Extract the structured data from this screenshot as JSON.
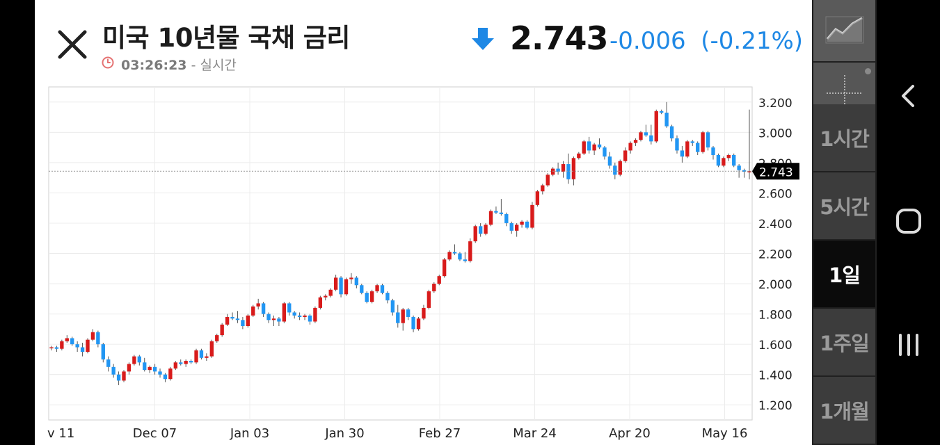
{
  "header": {
    "title": "미국 10년물 국채 금리",
    "time": "03:26:23",
    "time_suffix": " - 실시간",
    "price": "2.743",
    "change": "-0.006",
    "change_pct": "(-0.21%)",
    "change_color": "#1e88e5"
  },
  "icons": {
    "close": "close-icon",
    "clock": "clock-icon",
    "direction": "arrow-down-icon",
    "chart_type": "line-chart-icon",
    "crosshair": "crosshair-icon"
  },
  "rail": {
    "timeframes": [
      "1시간",
      "5시간",
      "1일",
      "1주일",
      "1개월"
    ],
    "active": "1일"
  },
  "chart_data": {
    "type": "candlestick",
    "x_tick_labels": [
      "v 11",
      "Dec 07",
      "Jan 03",
      "Jan 30",
      "Feb 27",
      "Mar 24",
      "Apr 20",
      "May 16"
    ],
    "y_tick_labels": [
      "3.200",
      "3.000",
      "2.800",
      "2.600",
      "2.400",
      "2.200",
      "2.000",
      "1.800",
      "1.600",
      "1.400",
      "1.200"
    ],
    "ylim": [
      1.1,
      3.3
    ],
    "current_value": 2.743,
    "current_label": "2.743",
    "up_color": "#d81b1b",
    "down_color": "#2196f3",
    "series": [
      [
        1.58,
        1.59,
        1.56,
        1.58
      ],
      [
        1.58,
        1.59,
        1.55,
        1.57
      ],
      [
        1.57,
        1.63,
        1.56,
        1.62
      ],
      [
        1.62,
        1.66,
        1.61,
        1.64
      ],
      [
        1.64,
        1.65,
        1.59,
        1.6
      ],
      [
        1.6,
        1.62,
        1.55,
        1.58
      ],
      [
        1.58,
        1.61,
        1.52,
        1.55
      ],
      [
        1.55,
        1.64,
        1.54,
        1.63
      ],
      [
        1.63,
        1.7,
        1.62,
        1.68
      ],
      [
        1.68,
        1.69,
        1.58,
        1.6
      ],
      [
        1.6,
        1.61,
        1.48,
        1.5
      ],
      [
        1.5,
        1.52,
        1.42,
        1.45
      ],
      [
        1.45,
        1.47,
        1.38,
        1.4
      ],
      [
        1.4,
        1.42,
        1.33,
        1.36
      ],
      [
        1.36,
        1.43,
        1.35,
        1.42
      ],
      [
        1.42,
        1.48,
        1.4,
        1.47
      ],
      [
        1.47,
        1.53,
        1.46,
        1.52
      ],
      [
        1.52,
        1.53,
        1.46,
        1.48
      ],
      [
        1.48,
        1.51,
        1.42,
        1.43
      ],
      [
        1.43,
        1.46,
        1.41,
        1.45
      ],
      [
        1.45,
        1.47,
        1.4,
        1.42
      ],
      [
        1.42,
        1.44,
        1.38,
        1.4
      ],
      [
        1.4,
        1.41,
        1.35,
        1.37
      ],
      [
        1.37,
        1.45,
        1.36,
        1.44
      ],
      [
        1.44,
        1.49,
        1.43,
        1.48
      ],
      [
        1.48,
        1.5,
        1.46,
        1.47
      ],
      [
        1.47,
        1.5,
        1.45,
        1.49
      ],
      [
        1.49,
        1.5,
        1.47,
        1.48
      ],
      [
        1.48,
        1.57,
        1.47,
        1.56
      ],
      [
        1.56,
        1.57,
        1.5,
        1.51
      ],
      [
        1.51,
        1.54,
        1.49,
        1.52
      ],
      [
        1.52,
        1.63,
        1.51,
        1.62
      ],
      [
        1.62,
        1.67,
        1.61,
        1.66
      ],
      [
        1.66,
        1.74,
        1.65,
        1.73
      ],
      [
        1.73,
        1.8,
        1.72,
        1.78
      ],
      [
        1.78,
        1.81,
        1.76,
        1.77
      ],
      [
        1.77,
        1.82,
        1.74,
        1.76
      ],
      [
        1.76,
        1.78,
        1.7,
        1.72
      ],
      [
        1.72,
        1.8,
        1.71,
        1.79
      ],
      [
        1.79,
        1.86,
        1.78,
        1.85
      ],
      [
        1.85,
        1.9,
        1.83,
        1.87
      ],
      [
        1.87,
        1.88,
        1.78,
        1.8
      ],
      [
        1.8,
        1.81,
        1.74,
        1.76
      ],
      [
        1.76,
        1.79,
        1.72,
        1.77
      ],
      [
        1.77,
        1.78,
        1.72,
        1.75
      ],
      [
        1.75,
        1.88,
        1.74,
        1.87
      ],
      [
        1.87,
        1.88,
        1.79,
        1.81
      ],
      [
        1.81,
        1.82,
        1.77,
        1.79
      ],
      [
        1.79,
        1.81,
        1.76,
        1.78
      ],
      [
        1.78,
        1.8,
        1.76,
        1.79
      ],
      [
        1.79,
        1.8,
        1.73,
        1.75
      ],
      [
        1.75,
        1.85,
        1.74,
        1.84
      ],
      [
        1.84,
        1.92,
        1.83,
        1.91
      ],
      [
        1.91,
        1.93,
        1.89,
        1.92
      ],
      [
        1.92,
        1.97,
        1.91,
        1.96
      ],
      [
        1.96,
        2.06,
        1.95,
        2.04
      ],
      [
        2.04,
        2.05,
        1.91,
        1.93
      ],
      [
        1.93,
        2.04,
        1.92,
        2.03
      ],
      [
        2.03,
        2.07,
        2.0,
        2.04
      ],
      [
        2.04,
        2.05,
        1.97,
        1.99
      ],
      [
        1.99,
        2.0,
        1.93,
        1.94
      ],
      [
        1.94,
        1.95,
        1.87,
        1.88
      ],
      [
        1.88,
        1.96,
        1.87,
        1.95
      ],
      [
        1.95,
        2.0,
        1.94,
        1.99
      ],
      [
        1.99,
        2.0,
        1.93,
        1.94
      ],
      [
        1.94,
        1.95,
        1.87,
        1.89
      ],
      [
        1.89,
        1.9,
        1.79,
        1.81
      ],
      [
        1.81,
        1.86,
        1.71,
        1.74
      ],
      [
        1.74,
        1.84,
        1.69,
        1.83
      ],
      [
        1.83,
        1.84,
        1.76,
        1.78
      ],
      [
        1.78,
        1.79,
        1.68,
        1.7
      ],
      [
        1.7,
        1.78,
        1.69,
        1.77
      ],
      [
        1.77,
        1.86,
        1.76,
        1.84
      ],
      [
        1.84,
        1.96,
        1.83,
        1.95
      ],
      [
        1.95,
        2.01,
        1.94,
        2.0
      ],
      [
        2.0,
        2.06,
        1.99,
        2.05
      ],
      [
        2.05,
        2.17,
        2.04,
        2.16
      ],
      [
        2.16,
        2.22,
        2.15,
        2.21
      ],
      [
        2.21,
        2.26,
        2.19,
        2.2
      ],
      [
        2.2,
        2.21,
        2.15,
        2.16
      ],
      [
        2.16,
        2.21,
        2.14,
        2.15
      ],
      [
        2.15,
        2.3,
        2.14,
        2.28
      ],
      [
        2.28,
        2.39,
        2.27,
        2.38
      ],
      [
        2.38,
        2.4,
        2.31,
        2.33
      ],
      [
        2.33,
        2.4,
        2.32,
        2.39
      ],
      [
        2.39,
        2.49,
        2.38,
        2.48
      ],
      [
        2.48,
        2.51,
        2.46,
        2.47
      ],
      [
        2.47,
        2.56,
        2.45,
        2.46
      ],
      [
        2.46,
        2.47,
        2.38,
        2.4
      ],
      [
        2.4,
        2.41,
        2.33,
        2.35
      ],
      [
        2.35,
        2.4,
        2.31,
        2.39
      ],
      [
        2.39,
        2.42,
        2.37,
        2.41
      ],
      [
        2.41,
        2.42,
        2.36,
        2.37
      ],
      [
        2.37,
        2.54,
        2.36,
        2.52
      ],
      [
        2.52,
        2.62,
        2.51,
        2.61
      ],
      [
        2.61,
        2.66,
        2.59,
        2.65
      ],
      [
        2.65,
        2.73,
        2.64,
        2.72
      ],
      [
        2.72,
        2.77,
        2.71,
        2.76
      ],
      [
        2.76,
        2.8,
        2.72,
        2.74
      ],
      [
        2.74,
        2.81,
        2.7,
        2.79
      ],
      [
        2.79,
        2.86,
        2.66,
        2.69
      ],
      [
        2.69,
        2.84,
        2.65,
        2.83
      ],
      [
        2.83,
        2.87,
        2.82,
        2.86
      ],
      [
        2.86,
        2.95,
        2.85,
        2.94
      ],
      [
        2.94,
        2.97,
        2.86,
        2.88
      ],
      [
        2.88,
        2.93,
        2.85,
        2.92
      ],
      [
        2.92,
        2.96,
        2.89,
        2.9
      ],
      [
        2.9,
        2.91,
        2.82,
        2.84
      ],
      [
        2.84,
        2.87,
        2.76,
        2.78
      ],
      [
        2.78,
        2.8,
        2.69,
        2.72
      ],
      [
        2.72,
        2.82,
        2.71,
        2.81
      ],
      [
        2.81,
        2.9,
        2.8,
        2.88
      ],
      [
        2.88,
        2.94,
        2.86,
        2.93
      ],
      [
        2.93,
        2.96,
        2.91,
        2.95
      ],
      [
        2.95,
        3.01,
        2.94,
        3.0
      ],
      [
        3.0,
        3.05,
        2.97,
        2.98
      ],
      [
        2.98,
        3.05,
        2.92,
        2.94
      ],
      [
        2.94,
        3.15,
        2.93,
        3.14
      ],
      [
        3.14,
        3.15,
        3.12,
        3.13
      ],
      [
        3.13,
        3.2,
        3.03,
        3.04
      ],
      [
        3.04,
        3.05,
        2.94,
        2.96
      ],
      [
        2.96,
        2.98,
        2.86,
        2.88
      ],
      [
        2.88,
        2.91,
        2.8,
        2.84
      ],
      [
        2.84,
        2.95,
        2.83,
        2.94
      ],
      [
        2.94,
        2.95,
        2.91,
        2.93
      ],
      [
        2.93,
        2.94,
        2.85,
        2.87
      ],
      [
        2.87,
        3.01,
        2.86,
        3.0
      ],
      [
        3.0,
        3.01,
        2.88,
        2.9
      ],
      [
        2.9,
        2.91,
        2.82,
        2.85
      ],
      [
        2.85,
        2.86,
        2.77,
        2.78
      ],
      [
        2.78,
        2.84,
        2.77,
        2.83
      ],
      [
        2.83,
        2.86,
        2.81,
        2.85
      ],
      [
        2.85,
        2.86,
        2.77,
        2.78
      ],
      [
        2.78,
        2.79,
        2.7,
        2.75
      ],
      [
        2.75,
        2.76,
        2.7,
        2.74
      ],
      [
        2.74,
        3.15,
        2.69,
        2.743
      ]
    ]
  }
}
